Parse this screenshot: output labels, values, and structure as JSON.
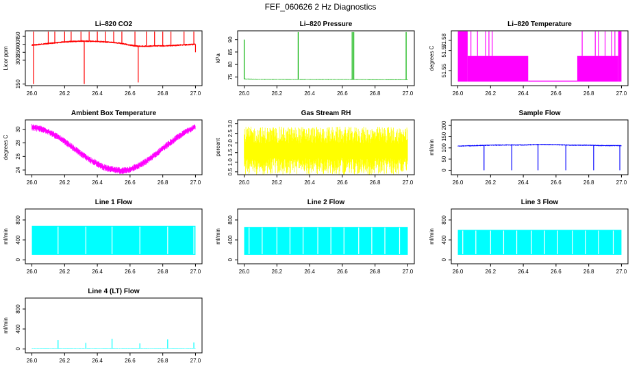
{
  "figure": {
    "title": "FEF_060626  2 Hz Diagnostics"
  },
  "chart_data": [
    {
      "id": "co2",
      "type": "line",
      "title": "Li–820 CO2",
      "xlabel": "",
      "ylabel": "Licor ppm",
      "color": "#ff0000",
      "xlim": [
        25.96,
        27.04
      ],
      "ylim": [
        140,
        485
      ],
      "xticks": [
        26.0,
        26.2,
        26.4,
        26.6,
        26.8,
        27.0
      ],
      "xtick_labels": [
        "26.0",
        "26.2",
        "26.4",
        "26.6",
        "26.8",
        "27.0"
      ],
      "yticks": [
        150,
        300,
        350,
        400,
        450
      ],
      "ytick_labels": [
        "150",
        "300",
        "350",
        "400",
        "450"
      ],
      "series": [
        {
          "name": "CO2",
          "style": "dense",
          "x": [
            26.0,
            26.05,
            26.1,
            26.15,
            26.2,
            26.25,
            26.3,
            26.35,
            26.4,
            26.45,
            26.5,
            26.55,
            26.6,
            26.65,
            26.7,
            26.75,
            26.8,
            26.85,
            26.9,
            26.95,
            27.0
          ],
          "center": [
            395,
            400,
            405,
            410,
            415,
            418,
            420,
            420,
            418,
            415,
            412,
            405,
            395,
            388,
            388,
            390,
            390,
            392,
            395,
            398,
            400
          ],
          "half": [
            6,
            6,
            6,
            6,
            6,
            6,
            6,
            6,
            6,
            6,
            6,
            6,
            6,
            6,
            6,
            6,
            6,
            6,
            6,
            6,
            6
          ],
          "spikes": [
            [
              26.01,
              480
            ],
            [
              26.01,
              150
            ],
            [
              26.1,
              480
            ],
            [
              26.14,
              480
            ],
            [
              26.2,
              480
            ],
            [
              26.24,
              480
            ],
            [
              26.3,
              480
            ],
            [
              26.32,
              150
            ],
            [
              26.35,
              480
            ],
            [
              26.4,
              480
            ],
            [
              26.45,
              480
            ],
            [
              26.5,
              480
            ],
            [
              26.55,
              480
            ],
            [
              26.63,
              480
            ],
            [
              26.65,
              160
            ],
            [
              26.7,
              480
            ],
            [
              26.75,
              480
            ],
            [
              26.8,
              480
            ],
            [
              26.85,
              480
            ],
            [
              26.93,
              480
            ],
            [
              26.99,
              480
            ],
            [
              27.0,
              350
            ]
          ]
        }
      ]
    },
    {
      "id": "pressure",
      "type": "line",
      "title": "Li–820 Pressure",
      "xlabel": "",
      "ylabel": "kPa",
      "color": "#00b000",
      "xlim": [
        25.96,
        27.04
      ],
      "ylim": [
        71.5,
        93.5
      ],
      "xticks": [
        26.0,
        26.2,
        26.4,
        26.6,
        26.8,
        27.0
      ],
      "xtick_labels": [
        "26.0",
        "26.2",
        "26.4",
        "26.6",
        "26.8",
        "27.0"
      ],
      "yticks": [
        75,
        80,
        85,
        90
      ],
      "ytick_labels": [
        "75",
        "80",
        "85",
        "90"
      ],
      "series": [
        {
          "name": "Pressure",
          "style": "dense",
          "x": [
            26.0,
            26.1,
            26.2,
            26.3,
            26.4,
            26.5,
            26.6,
            26.7,
            26.8,
            26.9,
            27.0
          ],
          "center": [
            74.2,
            74.1,
            74.1,
            74.0,
            74.0,
            74.0,
            74.0,
            74.0,
            73.9,
            73.9,
            73.9
          ],
          "half": [
            0.15,
            0.15,
            0.15,
            0.15,
            0.15,
            0.15,
            0.15,
            0.15,
            0.15,
            0.15,
            0.15
          ],
          "spikes": [
            [
              26.0,
              90
            ],
            [
              26.33,
              93
            ],
            [
              26.66,
              93
            ],
            [
              26.67,
              93
            ],
            [
              26.99,
              93
            ]
          ]
        }
      ]
    },
    {
      "id": "temperature",
      "type": "line",
      "title": "Li–820 Temperature",
      "xlabel": "",
      "ylabel": "degrees C",
      "color": "#ff00ff",
      "xlim": [
        25.96,
        27.04
      ],
      "ylim": [
        51.535,
        51.5895
      ],
      "xticks": [
        26.0,
        26.2,
        26.4,
        26.6,
        26.8,
        27.0
      ],
      "xtick_labels": [
        "26.0",
        "26.2",
        "26.4",
        "26.6",
        "26.8",
        "27.0"
      ],
      "yticks": [
        51.55,
        51.57,
        51.58
      ],
      "ytick_labels": [
        "51.55",
        "51.57",
        "51.58"
      ],
      "series": [
        {
          "name": "Temperature",
          "style": "bands",
          "bands": [
            [
              26.0,
              26.06,
              51.539,
              51.589
            ],
            [
              26.06,
              26.43,
              51.539,
              51.5645
            ],
            [
              26.43,
              26.73,
              51.539,
              51.54
            ],
            [
              26.73,
              26.98,
              51.539,
              51.5645
            ],
            [
              26.98,
              27.0,
              51.539,
              51.589
            ]
          ],
          "spikes": [
            [
              26.08,
              51.589
            ],
            [
              26.12,
              51.589
            ],
            [
              26.17,
              51.589
            ],
            [
              26.19,
              51.589
            ],
            [
              26.21,
              51.589
            ],
            [
              26.76,
              51.589
            ],
            [
              26.84,
              51.589
            ],
            [
              26.86,
              51.589
            ],
            [
              26.9,
              51.589
            ],
            [
              26.94,
              51.589
            ],
            [
              26.96,
              51.589
            ]
          ]
        }
      ]
    },
    {
      "id": "ambient",
      "type": "line",
      "title": "Ambient Box Temperature",
      "xlabel": "",
      "ylabel": "degrees C",
      "color": "#ff00ff",
      "xlim": [
        25.96,
        27.04
      ],
      "ylim": [
        23.3,
        31.4
      ],
      "xticks": [
        26.0,
        26.2,
        26.4,
        26.6,
        26.8,
        27.0
      ],
      "xtick_labels": [
        "26.0",
        "26.2",
        "26.4",
        "26.6",
        "26.8",
        "27.0"
      ],
      "yticks": [
        24,
        26,
        28,
        30
      ],
      "ytick_labels": [
        "24",
        "26",
        "28",
        "30"
      ],
      "series": [
        {
          "name": "Ambient",
          "style": "dense",
          "x": [
            26.0,
            26.05,
            26.1,
            26.15,
            26.2,
            26.25,
            26.3,
            26.35,
            26.4,
            26.45,
            26.5,
            26.55,
            26.6,
            26.65,
            26.7,
            26.75,
            26.8,
            26.85,
            26.9,
            26.95,
            27.0
          ],
          "center": [
            30.3,
            30.1,
            29.7,
            29.0,
            28.2,
            27.3,
            26.4,
            25.6,
            24.9,
            24.3,
            24.0,
            23.9,
            24.1,
            24.6,
            25.3,
            26.2,
            27.2,
            28.1,
            29.0,
            29.8,
            30.4
          ],
          "half": [
            0.5,
            0.5,
            0.5,
            0.5,
            0.5,
            0.5,
            0.5,
            0.5,
            0.5,
            0.5,
            0.5,
            0.5,
            0.5,
            0.5,
            0.5,
            0.5,
            0.5,
            0.5,
            0.5,
            0.5,
            0.5
          ],
          "spikes": []
        }
      ]
    },
    {
      "id": "rh",
      "type": "line",
      "title": "Gas Stream RH",
      "xlabel": "",
      "ylabel": "percent",
      "color": "#ffff00",
      "xlim": [
        25.96,
        27.04
      ],
      "ylim": [
        0.35,
        3.2
      ],
      "xticks": [
        26.0,
        26.2,
        26.4,
        26.6,
        26.8,
        27.0
      ],
      "xtick_labels": [
        "26.0",
        "26.2",
        "26.4",
        "26.6",
        "26.8",
        "27.0"
      ],
      "yticks": [
        0.5,
        1.0,
        1.5,
        2.0,
        2.5,
        3.0
      ],
      "ytick_labels": [
        "0.5",
        "1.0",
        "1.5",
        "2.0",
        "2.5",
        "3.0"
      ],
      "series": [
        {
          "name": "RH",
          "style": "dense",
          "x": [
            26.0,
            27.0
          ],
          "center": [
            1.6,
            1.6
          ],
          "half": [
            1.25,
            1.25
          ],
          "spikes": []
        }
      ]
    },
    {
      "id": "sampleflow",
      "type": "line",
      "title": "Sample Flow",
      "xlabel": "",
      "ylabel": "ml/min",
      "color": "#0000ff",
      "xlim": [
        25.96,
        27.04
      ],
      "ylim": [
        -20,
        225
      ],
      "xticks": [
        26.0,
        26.2,
        26.4,
        26.6,
        26.8,
        27.0
      ],
      "xtick_labels": [
        "26.0",
        "26.2",
        "26.4",
        "26.6",
        "26.8",
        "27.0"
      ],
      "yticks": [
        0,
        50,
        100,
        150,
        200
      ],
      "ytick_labels": [
        "0",
        "50",
        "100",
        "150",
        "200"
      ],
      "series": [
        {
          "name": "Sample",
          "style": "dense",
          "x": [
            26.0,
            26.1,
            26.2,
            26.3,
            26.4,
            26.5,
            26.6,
            26.7,
            26.8,
            26.9,
            27.0
          ],
          "center": [
            108,
            110,
            112,
            113,
            113,
            115,
            114,
            112,
            112,
            110,
            110
          ],
          "half": [
            3,
            3,
            3,
            3,
            3,
            3,
            3,
            3,
            3,
            3,
            3
          ],
          "spikes": [
            [
              26.16,
              0
            ],
            [
              26.33,
              0
            ],
            [
              26.49,
              0
            ],
            [
              26.66,
              0
            ],
            [
              26.83,
              0
            ],
            [
              26.99,
              0
            ]
          ]
        }
      ]
    },
    {
      "id": "line1",
      "type": "line",
      "title": "Line 1 Flow",
      "xlabel": "",
      "ylabel": "ml/min",
      "color": "#00ffff",
      "xlim": [
        25.96,
        27.04
      ],
      "ylim": [
        -80,
        1020
      ],
      "xticks": [
        26.0,
        26.2,
        26.4,
        26.6,
        26.8,
        27.0
      ],
      "xtick_labels": [
        "26.0",
        "26.2",
        "26.4",
        "26.6",
        "26.8",
        "27.0"
      ],
      "yticks": [
        0,
        400,
        800
      ],
      "ytick_labels": [
        "0",
        "400",
        "800"
      ],
      "series": [
        {
          "name": "Line 1",
          "style": "blocks",
          "bottom": 100,
          "top": 680,
          "gaps": [
            26.16,
            26.33,
            26.49,
            26.66,
            26.83,
            26.99
          ],
          "spikes": []
        }
      ]
    },
    {
      "id": "line2",
      "type": "line",
      "title": "Line 2 Flow",
      "xlabel": "",
      "ylabel": "ml/min",
      "color": "#00ffff",
      "xlim": [
        25.96,
        27.04
      ],
      "ylim": [
        -80,
        1020
      ],
      "xticks": [
        26.0,
        26.2,
        26.4,
        26.6,
        26.8,
        27.0
      ],
      "xtick_labels": [
        "26.0",
        "26.2",
        "26.4",
        "26.6",
        "26.8",
        "27.0"
      ],
      "yticks": [
        0,
        400,
        800
      ],
      "ytick_labels": [
        "0",
        "400",
        "800"
      ],
      "series": [
        {
          "name": "Line 2",
          "style": "blocks",
          "bottom": 100,
          "top": 660,
          "gaps": [
            26.03,
            26.11,
            26.2,
            26.28,
            26.36,
            26.45,
            26.53,
            26.61,
            26.7,
            26.78,
            26.86,
            26.95
          ],
          "spikes": []
        }
      ]
    },
    {
      "id": "line3",
      "type": "line",
      "title": "Line 3 Flow",
      "xlabel": "",
      "ylabel": "ml/min",
      "color": "#00ffff",
      "xlim": [
        25.96,
        27.04
      ],
      "ylim": [
        -80,
        1020
      ],
      "xticks": [
        26.0,
        26.2,
        26.4,
        26.6,
        26.8,
        27.0
      ],
      "xtick_labels": [
        "26.0",
        "26.2",
        "26.4",
        "26.6",
        "26.8",
        "27.0"
      ],
      "yticks": [
        0,
        400,
        800
      ],
      "ytick_labels": [
        "0",
        "400",
        "800"
      ],
      "series": [
        {
          "name": "Line 3",
          "style": "blocks",
          "bottom": 100,
          "top": 600,
          "gaps": [
            26.03,
            26.11,
            26.2,
            26.28,
            26.36,
            26.45,
            26.53,
            26.61,
            26.7,
            26.78,
            26.86,
            26.95
          ],
          "spikes": []
        }
      ]
    },
    {
      "id": "line4",
      "type": "line",
      "title": "Line 4 (LT) Flow",
      "xlabel": "",
      "ylabel": "ml/min",
      "color": "#00ffff",
      "xlim": [
        25.96,
        27.04
      ],
      "ylim": [
        -80,
        1020
      ],
      "xticks": [
        26.0,
        26.2,
        26.4,
        26.6,
        26.8,
        27.0
      ],
      "xtick_labels": [
        "26.0",
        "26.2",
        "26.4",
        "26.6",
        "26.8",
        "27.0"
      ],
      "yticks": [
        0,
        400,
        800
      ],
      "ytick_labels": [
        "0",
        "400",
        "800"
      ],
      "series": [
        {
          "name": "Line 4",
          "style": "dense",
          "x": [
            26.0,
            27.0
          ],
          "center": [
            10,
            10
          ],
          "half": [
            4,
            4
          ],
          "spikes": [
            [
              26.16,
              180
            ],
            [
              26.33,
              120
            ],
            [
              26.49,
              200
            ],
            [
              26.66,
              110
            ],
            [
              26.83,
              190
            ],
            [
              26.99,
              130
            ]
          ]
        }
      ]
    }
  ]
}
